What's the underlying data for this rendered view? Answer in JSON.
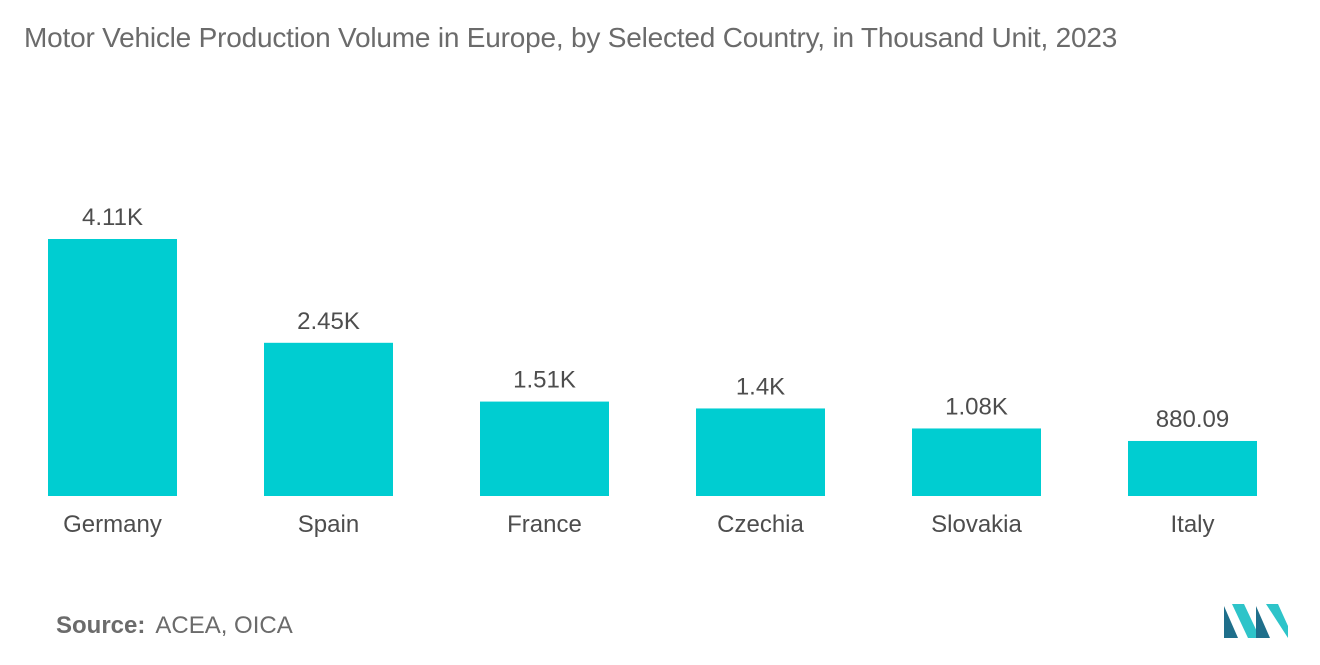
{
  "title": "Motor Vehicle Production Volume in Europe, by Selected Country, in Thousand Unit, 2023",
  "source": {
    "label": "Source:",
    "text": "ACEA, OICA"
  },
  "colors": {
    "bar": "#00CDD1",
    "text": "#4d4d4d",
    "logo_dark": "#1f6f8b",
    "logo_light": "#2ec4c9"
  },
  "logo_icon": "mordor-intelligence-logo-icon",
  "chart_data": {
    "type": "bar",
    "categories": [
      "Germany",
      "Spain",
      "France",
      "Czechia",
      "Slovakia",
      "Italy"
    ],
    "values": [
      4110,
      2450,
      1510,
      1400,
      1080,
      880.09
    ],
    "data_labels": [
      "4.11K",
      "2.45K",
      "1.51K",
      "1.4K",
      "1.08K",
      "880.09"
    ],
    "ylim": [
      0,
      4110
    ],
    "grid": false,
    "legend": "none",
    "xlabel": "",
    "ylabel": ""
  }
}
